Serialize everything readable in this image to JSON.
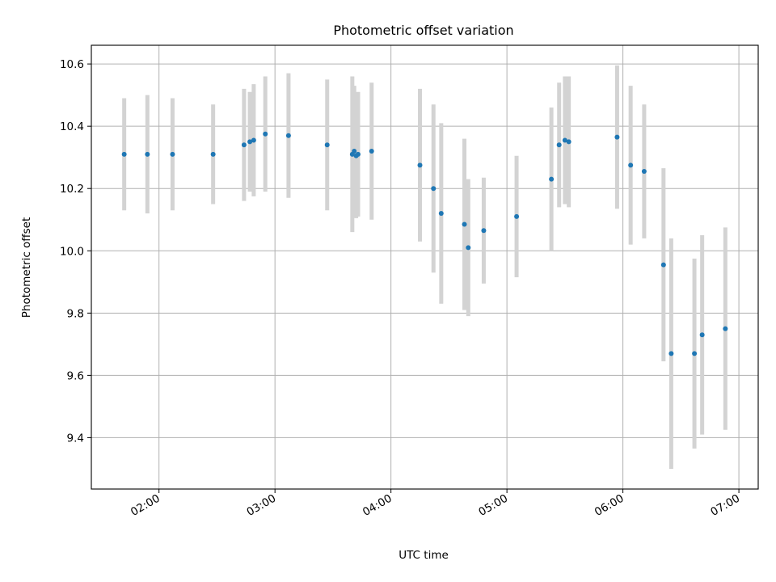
{
  "chart_data": {
    "type": "scatter",
    "title": "Photometric offset variation",
    "xlabel": "UTC time",
    "ylabel": "Photometric offset",
    "x_ticks": [
      "02:00",
      "03:00",
      "04:00",
      "05:00",
      "06:00",
      "07:00"
    ],
    "y_ticks": [
      "9.4",
      "9.6",
      "9.8",
      "10.0",
      "10.2",
      "10.4",
      "10.6"
    ],
    "xlim": [
      "01:25",
      "07:10"
    ],
    "ylim": [
      9.235,
      10.66
    ],
    "grid": true,
    "point_color": "#1f77b4",
    "errorbar_color": "#d3d3d3",
    "points": [
      {
        "x": "01:42",
        "y": 10.31,
        "err": 0.18
      },
      {
        "x": "01:54",
        "y": 10.31,
        "err": 0.19
      },
      {
        "x": "02:07",
        "y": 10.31,
        "err": 0.18
      },
      {
        "x": "02:28",
        "y": 10.31,
        "err": 0.16
      },
      {
        "x": "02:44",
        "y": 10.34,
        "err": 0.18
      },
      {
        "x": "02:47",
        "y": 10.35,
        "err": 0.16
      },
      {
        "x": "02:49",
        "y": 10.355,
        "err": 0.18
      },
      {
        "x": "02:55",
        "y": 10.375,
        "err": 0.185
      },
      {
        "x": "03:07",
        "y": 10.37,
        "err": 0.2
      },
      {
        "x": "03:27",
        "y": 10.34,
        "err": 0.21
      },
      {
        "x": "03:40",
        "y": 10.31,
        "err": 0.25
      },
      {
        "x": "03:41",
        "y": 10.32,
        "err": 0.21
      },
      {
        "x": "03:42",
        "y": 10.305,
        "err": 0.2
      },
      {
        "x": "03:43",
        "y": 10.31,
        "err": 0.2
      },
      {
        "x": "03:50",
        "y": 10.32,
        "err": 0.22
      },
      {
        "x": "04:15",
        "y": 10.275,
        "err": 0.245
      },
      {
        "x": "04:22",
        "y": 10.2,
        "err": 0.27
      },
      {
        "x": "04:26",
        "y": 10.12,
        "err": 0.29
      },
      {
        "x": "04:38",
        "y": 10.085,
        "err": 0.275
      },
      {
        "x": "04:40",
        "y": 10.01,
        "err": 0.22
      },
      {
        "x": "04:48",
        "y": 10.065,
        "err": 0.17
      },
      {
        "x": "05:05",
        "y": 10.11,
        "err": 0.195
      },
      {
        "x": "05:23",
        "y": 10.23,
        "err": 0.23
      },
      {
        "x": "05:27",
        "y": 10.34,
        "err": 0.2
      },
      {
        "x": "05:30",
        "y": 10.355,
        "err": 0.205
      },
      {
        "x": "05:32",
        "y": 10.35,
        "err": 0.21
      },
      {
        "x": "05:57",
        "y": 10.365,
        "err": 0.23
      },
      {
        "x": "06:04",
        "y": 10.275,
        "err": 0.255
      },
      {
        "x": "06:11",
        "y": 10.255,
        "err": 0.215
      },
      {
        "x": "06:21",
        "y": 9.955,
        "err": 0.31
      },
      {
        "x": "06:25",
        "y": 9.67,
        "err": 0.37
      },
      {
        "x": "06:37",
        "y": 9.67,
        "err": 0.305
      },
      {
        "x": "06:41",
        "y": 9.73,
        "err": 0.32
      },
      {
        "x": "06:53",
        "y": 9.75,
        "err": 0.325
      }
    ]
  }
}
